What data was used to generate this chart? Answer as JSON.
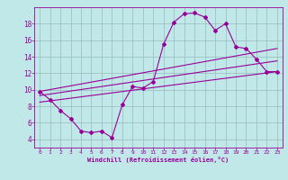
{
  "title": "",
  "xlabel": "Windchill (Refroidissement éolien,°C)",
  "bg_color": "#c0e8e8",
  "line_color": "#990099",
  "grid_color": "#99bbbb",
  "xlim": [
    -0.5,
    23.5
  ],
  "ylim": [
    3.0,
    20.0
  ],
  "xticks": [
    0,
    1,
    2,
    3,
    4,
    5,
    6,
    7,
    8,
    9,
    10,
    11,
    12,
    13,
    14,
    15,
    16,
    17,
    18,
    19,
    20,
    21,
    22,
    23
  ],
  "yticks": [
    4,
    6,
    8,
    10,
    12,
    14,
    16,
    18
  ],
  "line1_x": [
    0,
    1,
    2,
    3,
    4,
    5,
    6,
    7,
    8,
    9,
    10,
    11,
    12,
    13,
    14,
    15,
    16,
    17,
    18,
    19,
    20,
    21,
    22,
    23
  ],
  "line1_y": [
    9.8,
    8.8,
    7.5,
    6.5,
    5.0,
    4.8,
    5.0,
    4.2,
    8.2,
    10.4,
    10.2,
    11.0,
    15.5,
    18.2,
    19.2,
    19.3,
    18.8,
    17.2,
    18.0,
    15.2,
    15.0,
    13.7,
    12.2,
    12.2
  ],
  "line2_x": [
    0,
    23
  ],
  "line2_y": [
    8.5,
    12.2
  ],
  "line3_x": [
    0,
    23
  ],
  "line3_y": [
    9.3,
    13.5
  ],
  "line4_x": [
    0,
    23
  ],
  "line4_y": [
    9.8,
    15.0
  ],
  "marker": "D",
  "marker_size": 2.0,
  "linewidth": 0.8
}
